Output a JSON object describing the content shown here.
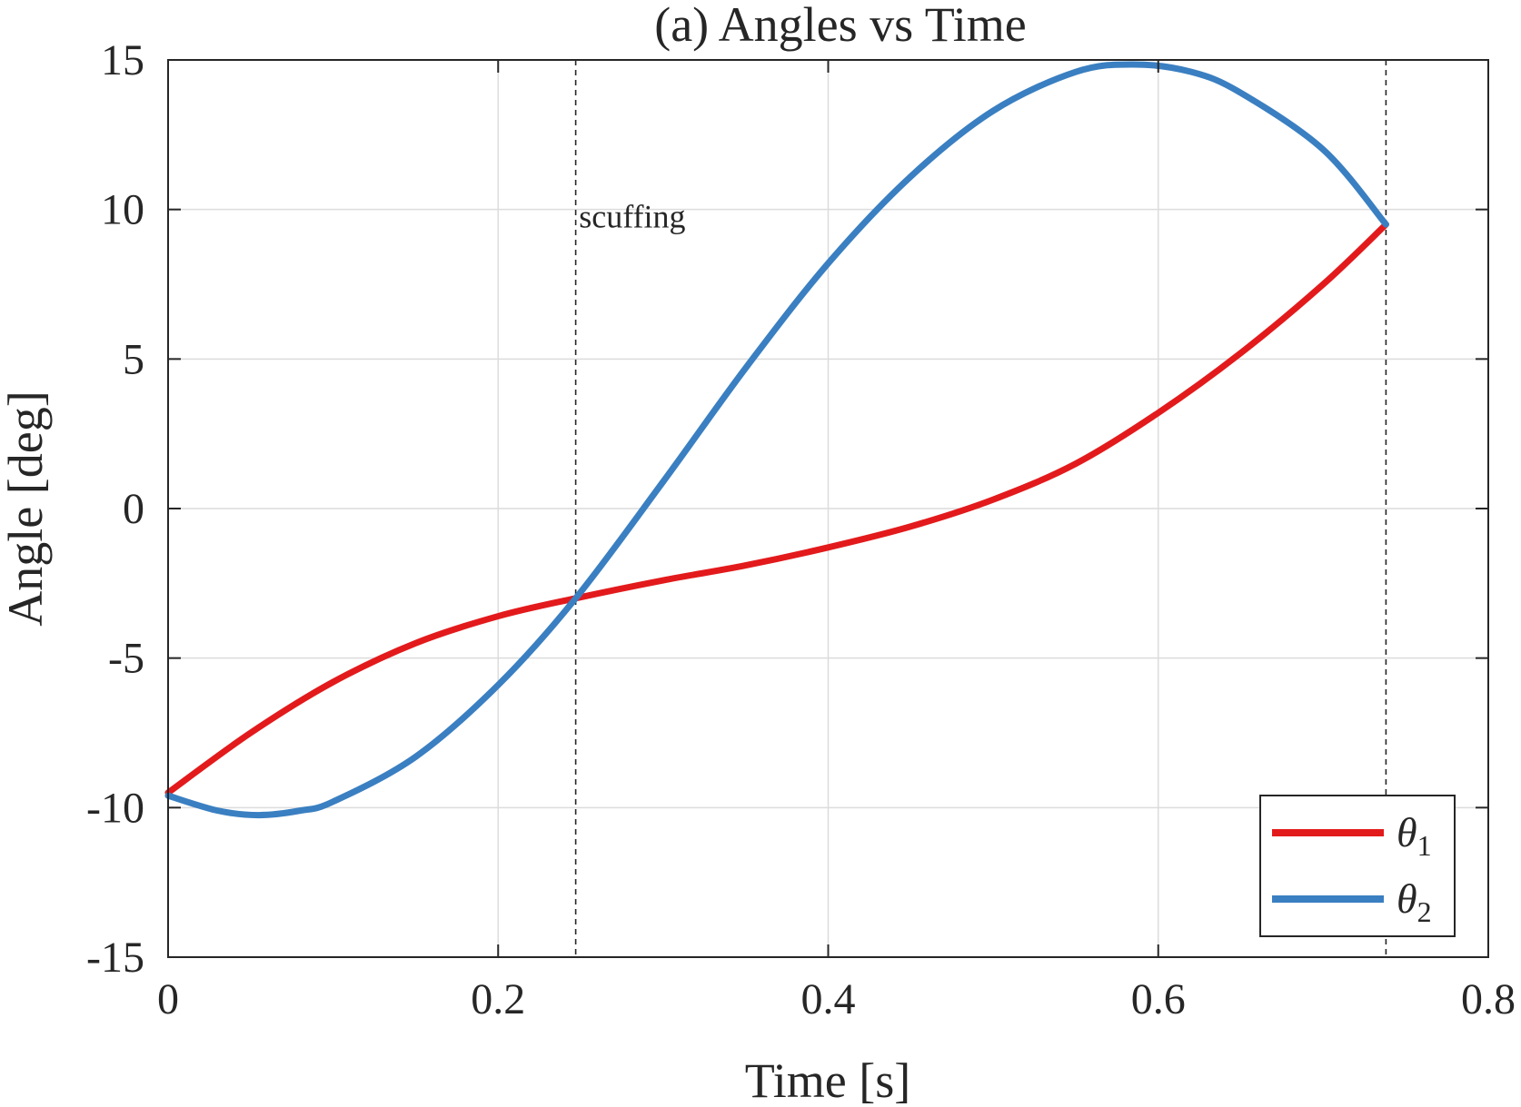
{
  "chart_data": {
    "type": "line",
    "title": "(a) Angles vs Time",
    "xlabel": "Time [s]",
    "ylabel": "Angle [deg]",
    "xlim": [
      0,
      0.8
    ],
    "ylim": [
      -15,
      15
    ],
    "xticks": [
      0,
      0.2,
      0.4,
      0.6,
      0.8
    ],
    "xtick_labels": [
      "0",
      "0.2",
      "0.4",
      "0.6",
      "0.8"
    ],
    "yticks": [
      -15,
      -10,
      -5,
      0,
      5,
      10,
      15
    ],
    "ytick_labels": [
      "-15",
      "-10",
      "-5",
      "0",
      "5",
      "10",
      "15"
    ],
    "grid": true,
    "legend_location": "bottom-right",
    "vlines": [
      {
        "x": 0.247,
        "label": "scuffing"
      },
      {
        "x": 0.738,
        "label": ""
      }
    ],
    "annotations": [
      {
        "text": "scuffing",
        "x": 0.249,
        "y": 9.4
      }
    ],
    "series": [
      {
        "name": "θ1",
        "symbol": "θ",
        "subscript": "1",
        "color": "#e31a1c",
        "x": [
          0,
          0.05,
          0.1,
          0.15,
          0.2,
          0.247,
          0.3,
          0.35,
          0.4,
          0.45,
          0.5,
          0.55,
          0.6,
          0.65,
          0.7,
          0.738
        ],
        "y": [
          -9.5,
          -7.5,
          -5.8,
          -4.5,
          -3.6,
          -3.0,
          -2.4,
          -1.9,
          -1.3,
          -0.6,
          0.3,
          1.5,
          3.2,
          5.2,
          7.5,
          9.5
        ]
      },
      {
        "name": "θ2",
        "symbol": "θ",
        "subscript": "2",
        "color": "#3a7fc1",
        "x": [
          0,
          0.03,
          0.055,
          0.08,
          0.1,
          0.15,
          0.2,
          0.247,
          0.3,
          0.35,
          0.4,
          0.45,
          0.5,
          0.55,
          0.585,
          0.62,
          0.65,
          0.7,
          0.738
        ],
        "y": [
          -9.6,
          -10.1,
          -10.25,
          -10.1,
          -9.8,
          -8.3,
          -5.9,
          -3.0,
          0.9,
          4.7,
          8.2,
          11.1,
          13.3,
          14.6,
          14.85,
          14.6,
          13.9,
          12.0,
          9.5
        ]
      }
    ]
  }
}
